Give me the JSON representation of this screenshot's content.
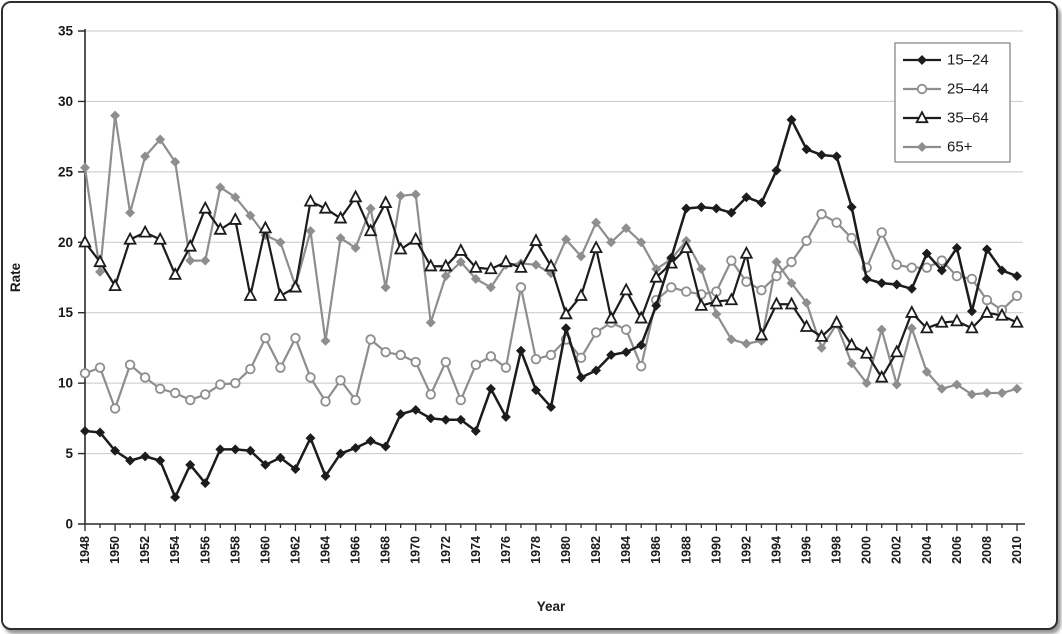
{
  "figure": {
    "x_label": "Year",
    "y_label": "Rate"
  },
  "axes": {
    "y_ticks": [
      0,
      5,
      10,
      15,
      20,
      25,
      30,
      35
    ],
    "y_min": 0,
    "y_max": 35,
    "x_first_year": 1948,
    "x_last_year": 2010,
    "x_label_step": 2
  },
  "colors": {
    "black_series": "#1c1c1c",
    "gray_series": "#8e8e8e",
    "gridline": "#c8c8c8",
    "axis": "#2b2b2b",
    "text": "#1a1a1a",
    "legend_border": "#7f7f7f",
    "background": "#ffffff"
  },
  "legend": {
    "position": "top-right",
    "items": [
      "15–24",
      "25–44",
      "35–64",
      "65+"
    ]
  },
  "chart_data": {
    "type": "line",
    "title": "",
    "xlabel": "Year",
    "ylabel": "Rate",
    "ylim": [
      0,
      35
    ],
    "grid": "horizontal",
    "legend_position": "top-right",
    "x": [
      1948,
      1949,
      1950,
      1951,
      1952,
      1953,
      1954,
      1955,
      1956,
      1957,
      1958,
      1959,
      1960,
      1961,
      1962,
      1963,
      1964,
      1965,
      1966,
      1967,
      1968,
      1969,
      1970,
      1971,
      1972,
      1973,
      1974,
      1975,
      1976,
      1977,
      1978,
      1979,
      1980,
      1981,
      1982,
      1983,
      1984,
      1985,
      1986,
      1987,
      1988,
      1989,
      1990,
      1991,
      1992,
      1993,
      1994,
      1995,
      1996,
      1997,
      1998,
      1999,
      2000,
      2001,
      2002,
      2003,
      2004,
      2005,
      2006,
      2007,
      2008,
      2009,
      2010
    ],
    "series": [
      {
        "name": "15–24",
        "slug": "age-15-24",
        "color": "#1c1c1c",
        "marker": "diamond",
        "marker_fill": "#1c1c1c",
        "values": [
          6.6,
          6.5,
          5.2,
          4.5,
          4.8,
          4.5,
          1.9,
          4.2,
          2.9,
          5.3,
          5.3,
          5.2,
          4.2,
          4.7,
          3.9,
          6.1,
          3.4,
          5.0,
          5.4,
          5.9,
          5.5,
          7.8,
          8.1,
          7.5,
          7.4,
          7.4,
          6.6,
          9.6,
          7.6,
          12.3,
          9.5,
          8.3,
          13.9,
          10.4,
          10.9,
          12.0,
          12.2,
          12.7,
          15.5,
          18.9,
          22.4,
          22.5,
          22.4,
          22.1,
          23.2,
          22.8,
          25.1,
          28.7,
          26.6,
          26.2,
          26.1,
          22.5,
          17.4,
          17.1,
          17.0,
          16.7,
          19.2,
          18.0,
          19.6,
          15.1,
          19.5,
          18.0,
          17.6
        ]
      },
      {
        "name": "25–44",
        "slug": "age-25-44",
        "color": "#8e8e8e",
        "marker": "circle",
        "marker_fill": "#ffffff",
        "values": [
          10.7,
          11.1,
          8.2,
          11.3,
          10.4,
          9.6,
          9.3,
          8.8,
          9.2,
          9.9,
          10.0,
          11.0,
          13.2,
          11.1,
          13.2,
          10.4,
          8.7,
          10.2,
          8.8,
          13.1,
          12.2,
          12.0,
          11.5,
          9.2,
          11.5,
          8.8,
          11.3,
          11.9,
          11.1,
          16.8,
          11.7,
          12.0,
          13.1,
          11.8,
          13.6,
          14.3,
          13.8,
          11.2,
          15.9,
          16.8,
          16.5,
          16.3,
          16.5,
          18.7,
          17.2,
          16.6,
          17.6,
          18.6,
          20.1,
          22.0,
          21.4,
          20.3,
          18.2,
          20.7,
          18.4,
          18.2,
          18.2,
          18.7,
          17.6,
          17.4,
          15.9,
          15.2,
          16.2
        ]
      },
      {
        "name": "35–64",
        "slug": "age-35-64",
        "color": "#1c1c1c",
        "marker": "triangle",
        "marker_fill": "#ffffff",
        "values": [
          20.0,
          18.6,
          16.9,
          20.2,
          20.7,
          20.2,
          17.7,
          19.7,
          22.4,
          20.9,
          21.6,
          16.2,
          21.0,
          16.2,
          16.8,
          22.9,
          22.4,
          21.7,
          23.2,
          20.8,
          22.8,
          19.5,
          20.2,
          18.3,
          18.3,
          19.4,
          18.2,
          18.1,
          18.6,
          18.2,
          20.1,
          18.3,
          14.9,
          16.2,
          19.6,
          14.6,
          16.6,
          14.6,
          17.5,
          18.5,
          19.6,
          15.5,
          15.8,
          15.9,
          19.2,
          13.4,
          15.6,
          15.6,
          14.0,
          13.3,
          14.3,
          12.7,
          12.1,
          10.4,
          12.2,
          15.0,
          13.9,
          14.3,
          14.4,
          13.9,
          15.0,
          14.8,
          14.3
        ]
      },
      {
        "name": "65+",
        "slug": "age-65-plus",
        "color": "#8e8e8e",
        "marker": "diamond",
        "marker_fill": "#8e8e8e",
        "values": [
          25.3,
          17.9,
          29.0,
          22.1,
          26.1,
          27.3,
          25.7,
          18.7,
          18.7,
          23.9,
          23.2,
          21.9,
          20.5,
          20.0,
          16.9,
          20.8,
          13.0,
          20.3,
          19.6,
          22.4,
          16.8,
          23.3,
          23.4,
          14.3,
          17.6,
          18.6,
          17.4,
          16.8,
          18.4,
          18.5,
          18.4,
          17.8,
          20.2,
          19.0,
          21.4,
          20.0,
          21.0,
          20.0,
          18.1,
          18.8,
          20.1,
          18.1,
          14.9,
          13.1,
          12.8,
          13.0,
          18.6,
          17.1,
          15.7,
          12.5,
          14.2,
          11.4,
          10.0,
          13.8,
          9.9,
          13.9,
          10.8,
          9.6,
          9.9,
          9.2,
          9.3,
          9.3,
          9.6
        ]
      }
    ]
  }
}
